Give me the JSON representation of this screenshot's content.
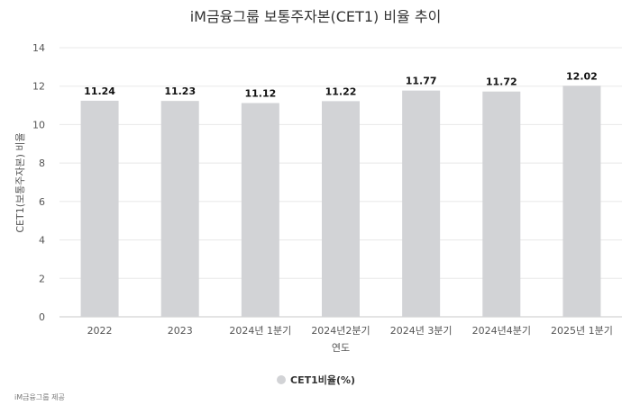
{
  "chart_data": {
    "type": "bar",
    "title": "iM금융그룹 보통주자본(CET1) 비율 추이",
    "xlabel": "연도",
    "ylabel": "CET1(보통주자본) 비율",
    "categories": [
      "2022",
      "2023",
      "2024년 1분기",
      "2024년2분기",
      "2024년 3분기",
      "2024년4분기",
      "2025년 1분기"
    ],
    "series": [
      {
        "name": "CET1비율(%)",
        "values": [
          11.24,
          11.23,
          11.12,
          11.22,
          11.77,
          11.72,
          12.02
        ]
      }
    ],
    "data_labels": [
      "11.24",
      "11.23",
      "11.12",
      "11.22",
      "11.77",
      "11.72",
      "12.02"
    ],
    "y_ticks": [
      0,
      2,
      4,
      6,
      8,
      10,
      12,
      14
    ],
    "ylim": [
      0,
      14
    ],
    "grid": true,
    "legend_position": "bottom",
    "bar_color": "#d2d3d6",
    "grid_color": "#e8e8e8"
  },
  "credit": "iM금융그룹 제공"
}
